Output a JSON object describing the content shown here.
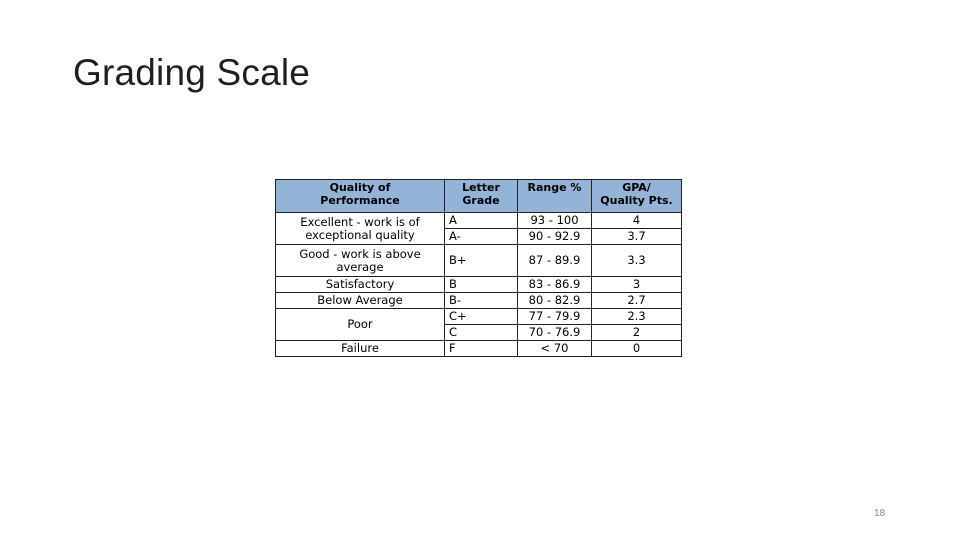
{
  "title": "Grading Scale",
  "slide_number": "18",
  "table": {
    "headers": {
      "quality_line1": "Quality of",
      "quality_line2": "Performance",
      "grade_line1": "Letter",
      "grade_line2": "Grade",
      "range": "Range %",
      "gpa_line1": "GPA/",
      "gpa_line2": "Quality Pts."
    },
    "groups": [
      {
        "quality_lines": [
          "Excellent - work is of",
          "exceptional quality"
        ],
        "rows": [
          {
            "grade": "A",
            "range": "93 - 100",
            "gpa": "4"
          },
          {
            "grade": "A-",
            "range": "90 - 92.9",
            "gpa": "3.7"
          }
        ]
      },
      {
        "quality_lines": [
          "Good - work is above",
          "average"
        ],
        "rows": [
          {
            "grade": "B+",
            "range": "87 - 89.9",
            "gpa": "3.3"
          }
        ]
      },
      {
        "quality_lines": [
          "Satisfactory"
        ],
        "rows": [
          {
            "grade": "B",
            "range": "83 - 86.9",
            "gpa": "3"
          }
        ]
      },
      {
        "quality_lines": [
          "Below Average"
        ],
        "rows": [
          {
            "grade": "B-",
            "range": "80 - 82.9",
            "gpa": "2.7"
          }
        ]
      },
      {
        "quality_lines": [
          "Poor"
        ],
        "rows": [
          {
            "grade": "C+",
            "range": "77 - 79.9",
            "gpa": "2.3"
          },
          {
            "grade": "C",
            "range": "70 - 76.9",
            "gpa": "2"
          }
        ]
      },
      {
        "quality_lines": [
          "Failure"
        ],
        "rows": [
          {
            "grade": "F",
            "range": "< 70",
            "gpa": "0"
          }
        ]
      }
    ]
  }
}
